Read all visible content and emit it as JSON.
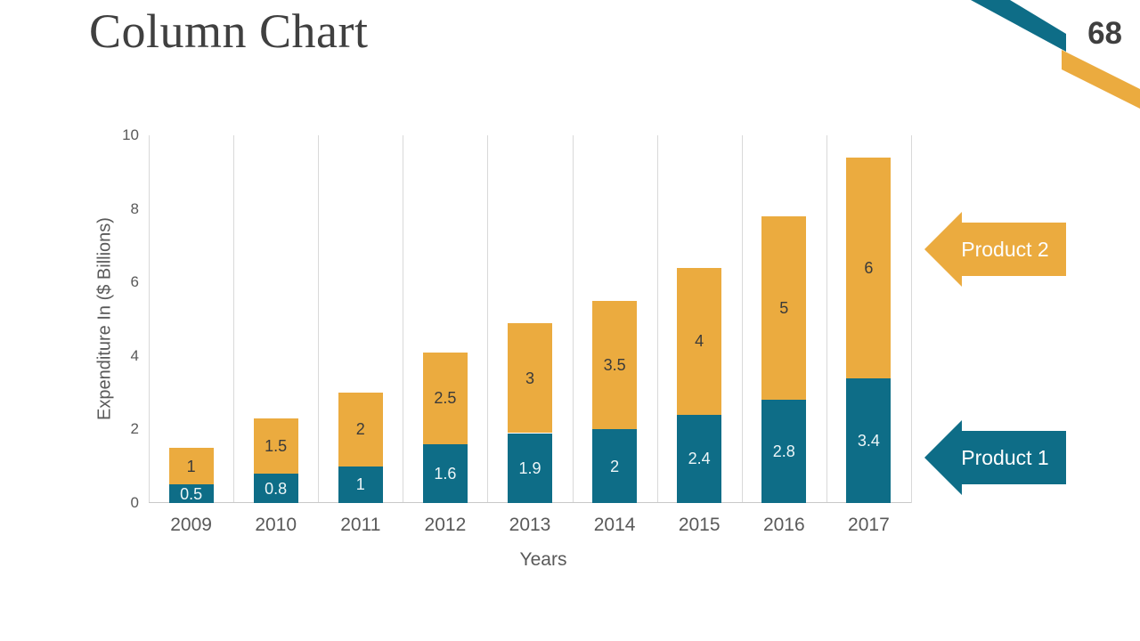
{
  "header": {
    "title": "Column Chart",
    "page_number": "68"
  },
  "colors": {
    "teal": "#0E6D87",
    "orange": "#EBAB3F",
    "title_text": "#404040",
    "axis_text": "#595959",
    "grid": "#D9D9D9",
    "label_on_teal": "#EDF6F8",
    "label_on_orange": "#3A3A3A"
  },
  "chart_data": {
    "type": "bar",
    "stacked": true,
    "title": "",
    "xlabel": "Years",
    "ylabel": "Expenditure In ($ Billions)",
    "ylim": [
      0,
      10
    ],
    "y_ticks": [
      0,
      2,
      4,
      6,
      8,
      10
    ],
    "grid": "vertical",
    "legend_position": "right",
    "categories": [
      "2009",
      "2010",
      "2011",
      "2012",
      "2013",
      "2014",
      "2015",
      "2016",
      "2017"
    ],
    "series": [
      {
        "name": "Product 1",
        "color": "#0E6D87",
        "label_color": "#EDF6F8",
        "values": [
          0.5,
          0.8,
          1,
          1.6,
          1.9,
          2,
          2.4,
          2.8,
          3.4
        ]
      },
      {
        "name": "Product 2",
        "color": "#EBAB3F",
        "label_color": "#3A3A3A",
        "values": [
          1,
          1.5,
          2,
          2.5,
          3,
          3.5,
          4,
          5,
          6
        ]
      }
    ]
  },
  "legend": {
    "product2": {
      "label": "Product 2",
      "color": "#EBAB3F"
    },
    "product1": {
      "label": "Product 1",
      "color": "#0E6D87"
    }
  },
  "decorations": {
    "ribbon_teal": "#0E6D87",
    "ribbon_orange": "#EBAB3F"
  }
}
